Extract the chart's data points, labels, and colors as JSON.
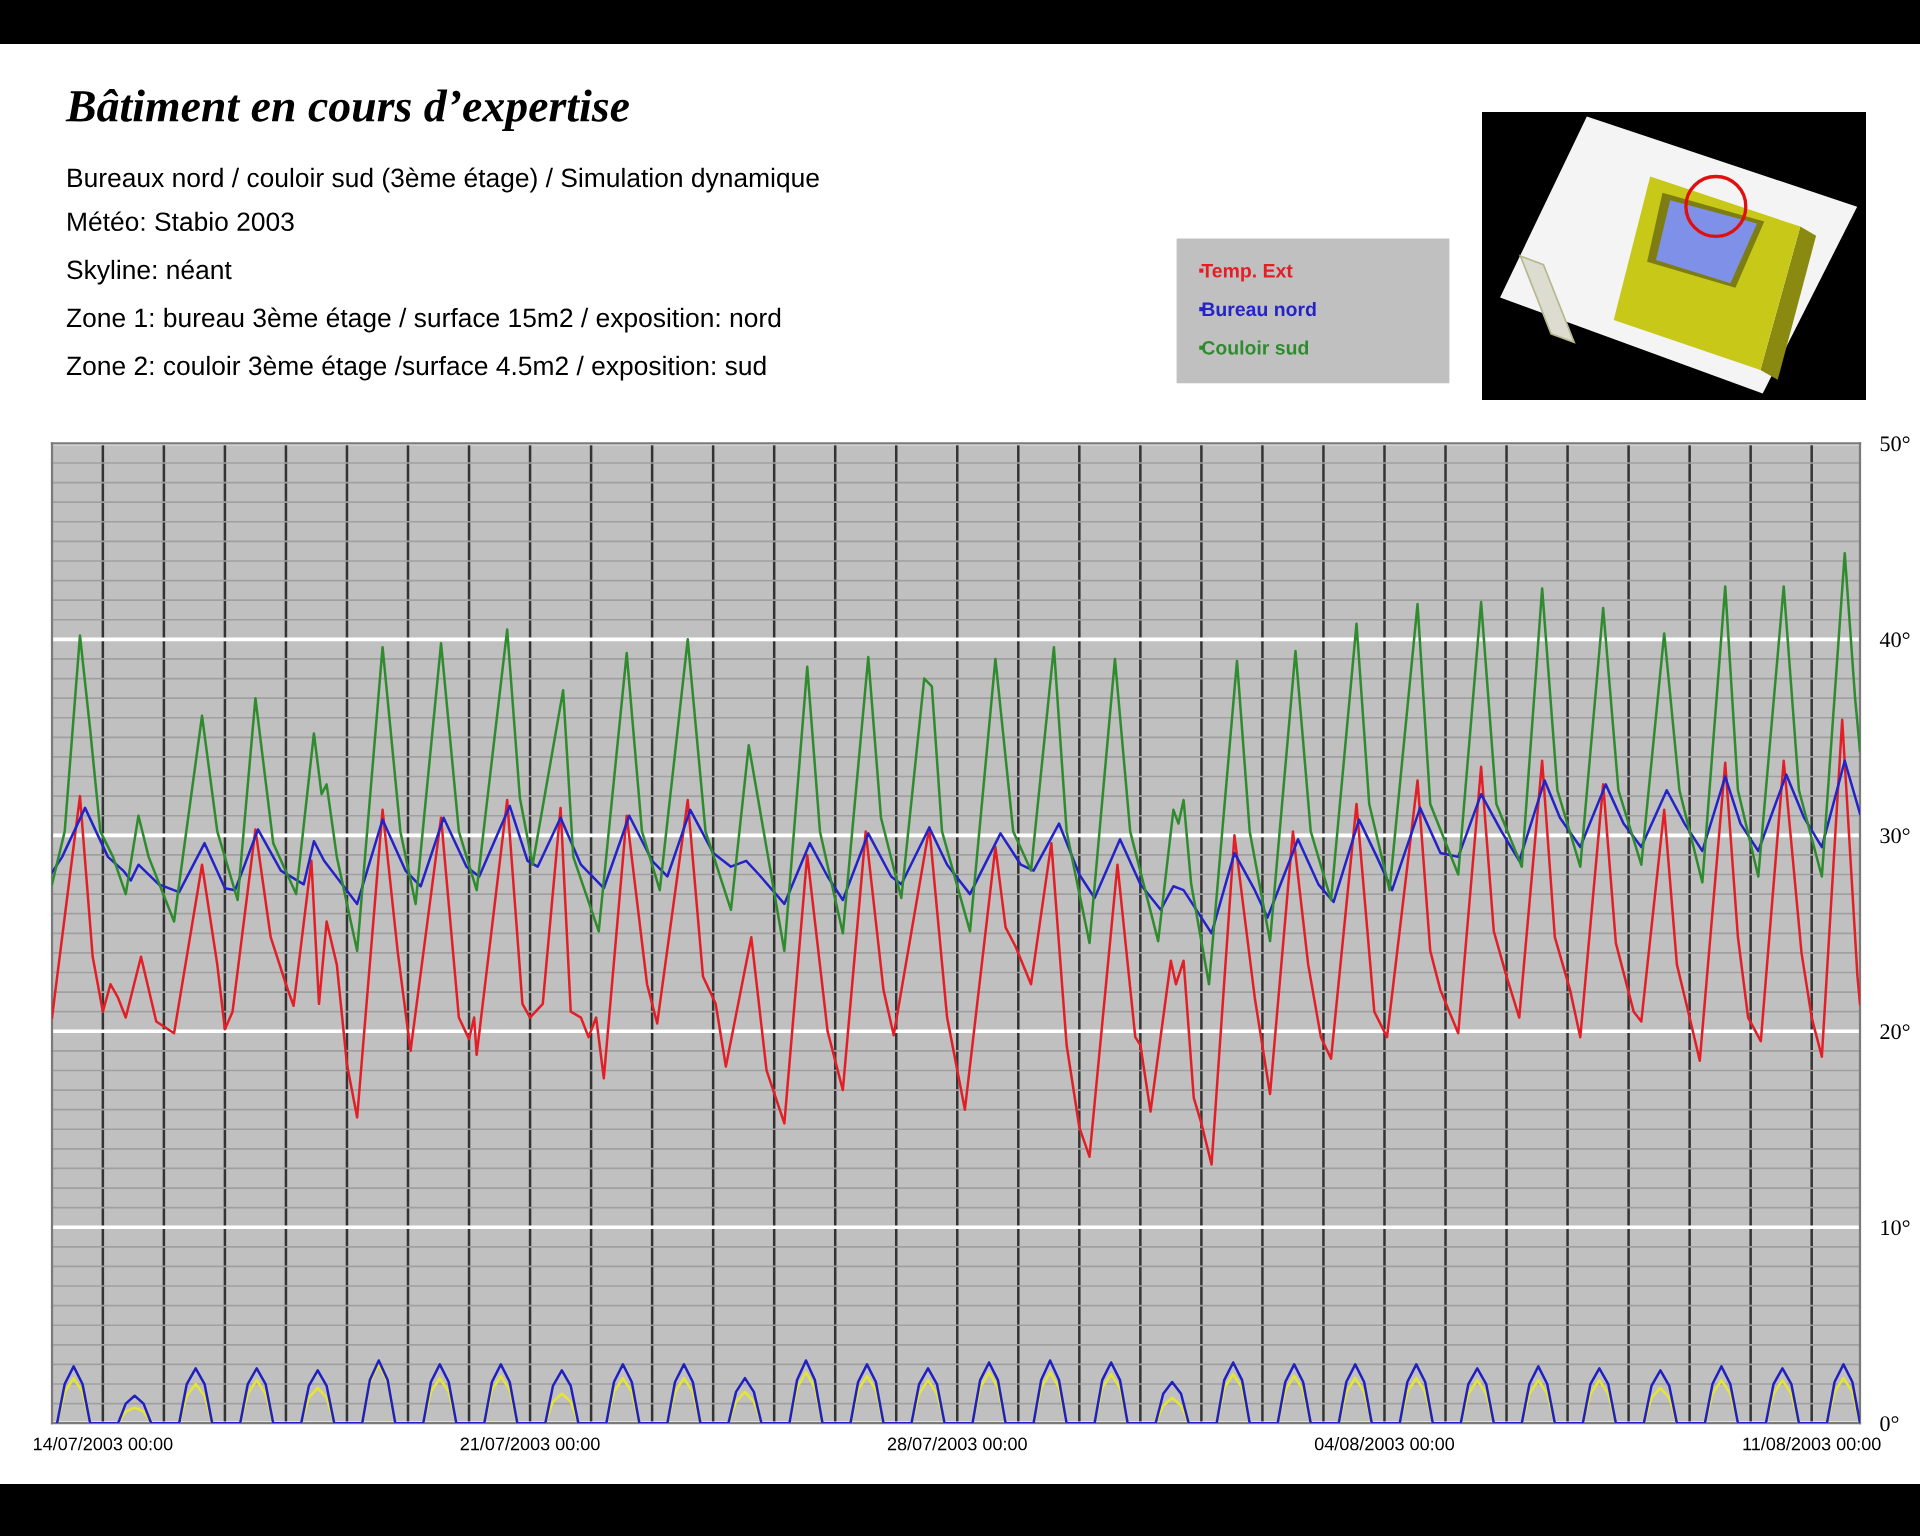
{
  "chart_data": {
    "type": "line",
    "title": "Bâtiment en cours d’expertise",
    "subtitle": "Bureaux nord / couloir sud (3ème étage) / Simulation dynamique",
    "annotations": [
      "Météo: Stabio 2003",
      "Skyline: néant",
      "Zone 1: bureau 3ème étage / surface 15m2 / exposition: nord",
      "Zone 2: couloir 3ème étage /surface 4.5m2 / exposition: sud"
    ],
    "xlim": [
      "2003-07-13T04:00",
      "2003-08-11T19:00"
    ],
    "xticks": [
      {
        "value": "2003-07-14",
        "label": "14/07/2003 00:00"
      },
      {
        "value": "2003-07-15",
        "label": null
      },
      {
        "value": "2003-07-16",
        "label": null
      },
      {
        "value": "2003-07-17",
        "label": null
      },
      {
        "value": "2003-07-18",
        "label": null
      },
      {
        "value": "2003-07-19",
        "label": null
      },
      {
        "value": "2003-07-20",
        "label": null
      },
      {
        "value": "2003-07-21",
        "label": "21/07/2003 00:00"
      },
      {
        "value": "2003-07-22",
        "label": null
      },
      {
        "value": "2003-07-23",
        "label": null
      },
      {
        "value": "2003-07-24",
        "label": null
      },
      {
        "value": "2003-07-25",
        "label": null
      },
      {
        "value": "2003-07-26",
        "label": null
      },
      {
        "value": "2003-07-27",
        "label": null
      },
      {
        "value": "2003-07-28",
        "label": "28/07/2003 00:00"
      },
      {
        "value": "2003-07-29",
        "label": null
      },
      {
        "value": "2003-07-30",
        "label": null
      },
      {
        "value": "2003-07-31",
        "label": null
      },
      {
        "value": "2003-08-01",
        "label": null
      },
      {
        "value": "2003-08-02",
        "label": null
      },
      {
        "value": "2003-08-03",
        "label": null
      },
      {
        "value": "2003-08-04",
        "label": "04/08/2003 00:00"
      },
      {
        "value": "2003-08-05",
        "label": null
      },
      {
        "value": "2003-08-06",
        "label": null
      },
      {
        "value": "2003-08-07",
        "label": null
      },
      {
        "value": "2003-08-08",
        "label": null
      },
      {
        "value": "2003-08-09",
        "label": null
      },
      {
        "value": "2003-08-10",
        "label": null
      },
      {
        "value": "2003-08-11",
        "label": "11/08/2003 00:00"
      }
    ],
    "ylim": [
      0,
      50
    ],
    "yticks": [
      {
        "value": 0,
        "label": "0°"
      },
      {
        "value": 1,
        "label": null
      },
      {
        "value": 2,
        "label": null
      },
      {
        "value": 3,
        "label": null
      },
      {
        "value": 4,
        "label": null
      },
      {
        "value": 5,
        "label": null
      },
      {
        "value": 6,
        "label": null
      },
      {
        "value": 7,
        "label": null
      },
      {
        "value": 8,
        "label": null
      },
      {
        "value": 9,
        "label": null
      },
      {
        "value": 10,
        "label": "10°"
      },
      {
        "value": 11,
        "label": null
      },
      {
        "value": 12,
        "label": null
      },
      {
        "value": 13,
        "label": null
      },
      {
        "value": 14,
        "label": null
      },
      {
        "value": 15,
        "label": null
      },
      {
        "value": 16,
        "label": null
      },
      {
        "value": 17,
        "label": null
      },
      {
        "value": 18,
        "label": null
      },
      {
        "value": 19,
        "label": null
      },
      {
        "value": 20,
        "label": "20°"
      },
      {
        "value": 21,
        "label": null
      },
      {
        "value": 22,
        "label": null
      },
      {
        "value": 23,
        "label": null
      },
      {
        "value": 24,
        "label": null
      },
      {
        "value": 25,
        "label": null
      },
      {
        "value": 26,
        "label": null
      },
      {
        "value": 27,
        "label": null
      },
      {
        "value": 28,
        "label": null
      },
      {
        "value": 29,
        "label": null
      },
      {
        "value": 30,
        "label": "30°"
      },
      {
        "value": 31,
        "label": null
      },
      {
        "value": 32,
        "label": null
      },
      {
        "value": 33,
        "label": null
      },
      {
        "value": 34,
        "label": null
      },
      {
        "value": 35,
        "label": null
      },
      {
        "value": 36,
        "label": null
      },
      {
        "value": 37,
        "label": null
      },
      {
        "value": 38,
        "label": null
      },
      {
        "value": 39,
        "label": null
      },
      {
        "value": 40,
        "label": "40°"
      },
      {
        "value": 41,
        "label": null
      },
      {
        "value": 42,
        "label": null
      },
      {
        "value": 43,
        "label": null
      },
      {
        "value": 44,
        "label": null
      },
      {
        "value": 45,
        "label": null
      },
      {
        "value": 46,
        "label": null
      },
      {
        "value": 47,
        "label": null
      },
      {
        "value": 48,
        "label": null
      },
      {
        "value": 49,
        "label": null
      },
      {
        "value": 50,
        "label": "50°"
      }
    ],
    "grid": true,
    "legend": "top right",
    "x": [
      "2003-07-13T06:00",
      "2003-07-13T09:00",
      "2003-07-13T12:30",
      "2003-07-13T16:00",
      "2003-07-13T19:00",
      "2003-07-14T06:00",
      "2003-07-14T09:00",
      "2003-07-14T12:30",
      "2003-07-14T16:00",
      "2003-07-14T19:00",
      "2003-07-15T06:00",
      "2003-07-15T09:00",
      "2003-07-15T12:30",
      "2003-07-15T16:00",
      "2003-07-15T19:00",
      "2003-07-16T06:00",
      "2003-07-16T09:00",
      "2003-07-16T12:30",
      "2003-07-16T16:00",
      "2003-07-16T19:00",
      "2003-07-17T06:00",
      "2003-07-17T09:00",
      "2003-07-17T12:30",
      "2003-07-17T16:00",
      "2003-07-17T19:00",
      "2003-07-18T06:00",
      "2003-07-18T09:00",
      "2003-07-18T12:30",
      "2003-07-18T16:00",
      "2003-07-18T19:00",
      "2003-07-19T06:00",
      "2003-07-19T09:00",
      "2003-07-19T12:30",
      "2003-07-19T16:00",
      "2003-07-19T19:00",
      "2003-07-20T06:00",
      "2003-07-20T09:00",
      "2003-07-20T12:30",
      "2003-07-20T16:00",
      "2003-07-20T19:00",
      "2003-07-21T06:00",
      "2003-07-21T09:00",
      "2003-07-21T12:30",
      "2003-07-21T16:00",
      "2003-07-21T19:00",
      "2003-07-22T06:00",
      "2003-07-22T09:00",
      "2003-07-22T12:30",
      "2003-07-22T16:00",
      "2003-07-22T19:00",
      "2003-07-23T06:00",
      "2003-07-23T09:00",
      "2003-07-23T12:30",
      "2003-07-23T16:00",
      "2003-07-23T19:00",
      "2003-07-24T06:00",
      "2003-07-24T09:00",
      "2003-07-24T12:30",
      "2003-07-24T16:00",
      "2003-07-24T19:00",
      "2003-07-25T06:00",
      "2003-07-25T09:00",
      "2003-07-25T12:30",
      "2003-07-25T16:00",
      "2003-07-25T19:00",
      "2003-07-26T06:00",
      "2003-07-26T09:00",
      "2003-07-26T12:30",
      "2003-07-26T16:00",
      "2003-07-26T19:00",
      "2003-07-27T06:00",
      "2003-07-27T09:00",
      "2003-07-27T12:30",
      "2003-07-27T16:00",
      "2003-07-27T19:00",
      "2003-07-28T06:00",
      "2003-07-28T09:00",
      "2003-07-28T12:30",
      "2003-07-28T16:00",
      "2003-07-28T19:00",
      "2003-07-29T06:00",
      "2003-07-29T09:00",
      "2003-07-29T12:30",
      "2003-07-29T16:00",
      "2003-07-29T19:00",
      "2003-07-30T06:00",
      "2003-07-30T09:00",
      "2003-07-30T12:30",
      "2003-07-30T16:00",
      "2003-07-30T19:00",
      "2003-07-31T06:00",
      "2003-07-31T09:00",
      "2003-07-31T12:30",
      "2003-07-31T16:00",
      "2003-07-31T19:00",
      "2003-08-01T06:00",
      "2003-08-01T09:00",
      "2003-08-01T12:30",
      "2003-08-01T16:00",
      "2003-08-01T19:00",
      "2003-08-02T06:00",
      "2003-08-02T09:00",
      "2003-08-02T12:30",
      "2003-08-02T16:00",
      "2003-08-02T19:00",
      "2003-08-03T06:00",
      "2003-08-03T09:00",
      "2003-08-03T12:30",
      "2003-08-03T16:00",
      "2003-08-03T19:00",
      "2003-08-04T06:00",
      "2003-08-04T09:00",
      "2003-08-04T12:30",
      "2003-08-04T16:00",
      "2003-08-04T19:00",
      "2003-08-05T06:00",
      "2003-08-05T09:00",
      "2003-08-05T12:30",
      "2003-08-05T16:00",
      "2003-08-05T19:00",
      "2003-08-06T06:00",
      "2003-08-06T09:00",
      "2003-08-06T12:30",
      "2003-08-06T16:00",
      "2003-08-06T19:00",
      "2003-08-07T06:00",
      "2003-08-07T09:00",
      "2003-08-07T12:30",
      "2003-08-07T16:00",
      "2003-08-07T19:00",
      "2003-08-08T06:00",
      "2003-08-08T09:00",
      "2003-08-08T12:30",
      "2003-08-08T16:00",
      "2003-08-08T19:00",
      "2003-08-09T06:00",
      "2003-08-09T09:00",
      "2003-08-09T12:30",
      "2003-08-09T16:00",
      "2003-08-09T19:00",
      "2003-08-10T06:00",
      "2003-08-10T09:00",
      "2003-08-10T12:30",
      "2003-08-10T16:00",
      "2003-08-10T19:00",
      "2003-08-11T06:00",
      "2003-08-11T09:00",
      "2003-08-11T12:30",
      "2003-08-11T16:00",
      "2003-08-11T19:00"
    ],
    "series": [
      {
        "name": "Temp. Ext",
        "color": "#e31e26",
        "x": [
          "2003-07-13T04:00",
          "2003-07-13T15:00",
          "2003-07-13T20:00",
          "2003-07-14T00:00",
          "2003-07-14T03:00",
          "2003-07-14T06:00",
          "2003-07-14T09:00",
          "2003-07-14T15:00",
          "2003-07-14T21:00",
          "2003-07-15T04:00",
          "2003-07-15T15:00",
          "2003-07-15T21:00",
          "2003-07-16T00:00",
          "2003-07-16T03:00",
          "2003-07-16T12:00",
          "2003-07-16T18:00",
          "2003-07-17T00:00",
          "2003-07-17T03:00",
          "2003-07-17T10:00",
          "2003-07-17T13:00",
          "2003-07-17T16:00",
          "2003-07-17T20:00",
          "2003-07-18T00:00",
          "2003-07-18T04:00",
          "2003-07-18T14:00",
          "2003-07-18T20:00",
          "2003-07-19T01:00",
          "2003-07-19T13:00",
          "2003-07-19T20:00",
          "2003-07-20T00:00",
          "2003-07-20T02:00",
          "2003-07-20T03:00",
          "2003-07-20T15:00",
          "2003-07-20T21:00",
          "2003-07-21T00:00",
          "2003-07-21T05:00",
          "2003-07-21T12:00",
          "2003-07-21T16:00",
          "2003-07-21T20:00",
          "2003-07-21T23:00",
          "2003-07-22T02:00",
          "2003-07-22T05:00",
          "2003-07-22T14:00",
          "2003-07-22T22:00",
          "2003-07-23T02:00",
          "2003-07-23T14:00",
          "2003-07-23T20:00",
          "2003-07-24T01:00",
          "2003-07-24T05:00",
          "2003-07-24T15:00",
          "2003-07-24T21:00",
          "2003-07-25T04:00",
          "2003-07-25T13:00",
          "2003-07-25T21:00",
          "2003-07-26T03:00",
          "2003-07-26T12:00",
          "2003-07-26T19:00",
          "2003-07-26T23:00",
          "2003-07-27T13:00",
          "2003-07-27T20:00",
          "2003-07-28T03:00",
          "2003-07-28T15:00",
          "2003-07-28T19:00",
          "2003-07-28T23:00",
          "2003-07-29T05:00",
          "2003-07-29T13:00",
          "2003-07-29T19:00",
          "2003-07-30T00:00",
          "2003-07-30T04:00",
          "2003-07-30T15:00",
          "2003-07-30T22:00",
          "2003-07-31T00:00",
          "2003-07-31T04:00",
          "2003-07-31T12:00",
          "2003-07-31T14:00",
          "2003-07-31T17:00",
          "2003-07-31T21:00",
          "2003-08-01T00:00",
          "2003-08-01T04:00",
          "2003-08-01T13:00",
          "2003-08-01T21:00",
          "2003-08-02T03:00",
          "2003-08-02T12:00",
          "2003-08-02T18:00",
          "2003-08-02T23:00",
          "2003-08-03T03:00",
          "2003-08-03T13:00",
          "2003-08-03T20:00",
          "2003-08-04T01:00",
          "2003-08-04T13:00",
          "2003-08-04T18:00",
          "2003-08-04T22:00",
          "2003-08-05T05:00",
          "2003-08-05T14:00",
          "2003-08-05T19:00",
          "2003-08-06T00:00",
          "2003-08-06T05:00",
          "2003-08-06T14:00",
          "2003-08-06T19:00",
          "2003-08-07T01:00",
          "2003-08-07T05:00",
          "2003-08-07T14:00",
          "2003-08-07T19:00",
          "2003-08-08T02:00",
          "2003-08-08T05:00",
          "2003-08-08T14:00",
          "2003-08-08T19:00",
          "2003-08-09T00:00",
          "2003-08-09T04:00",
          "2003-08-09T14:00",
          "2003-08-09T19:00",
          "2003-08-09T23:00",
          "2003-08-10T04:00",
          "2003-08-10T13:00",
          "2003-08-10T20:00",
          "2003-08-11T00:00",
          "2003-08-11T04:00",
          "2003-08-11T12:00",
          "2003-08-11T18:00",
          "2003-08-11T19:00"
        ],
        "values": [
          20.7,
          32.0,
          23.8,
          21.0,
          22.4,
          21.7,
          20.7,
          23.8,
          20.5,
          19.9,
          28.5,
          23.4,
          20.1,
          21.0,
          30.3,
          24.8,
          22.4,
          21.3,
          28.7,
          21.4,
          25.6,
          23.4,
          18.3,
          15.6,
          31.3,
          24.0,
          19.0,
          30.9,
          20.7,
          19.6,
          20.7,
          18.8,
          31.8,
          21.4,
          20.7,
          21.4,
          31.4,
          21.0,
          20.7,
          19.7,
          20.7,
          17.6,
          31.0,
          22.4,
          20.4,
          31.8,
          22.8,
          21.4,
          18.2,
          24.8,
          18.0,
          15.3,
          29.0,
          20.0,
          17.0,
          30.2,
          22.1,
          19.8,
          30.4,
          20.7,
          16.0,
          29.4,
          25.3,
          24.3,
          22.4,
          29.6,
          19.3,
          15.1,
          13.6,
          28.5,
          19.7,
          19.3,
          15.9,
          23.6,
          22.4,
          23.6,
          16.6,
          15.3,
          13.2,
          30.0,
          21.7,
          16.8,
          30.2,
          23.4,
          19.7,
          18.6,
          31.6,
          21.0,
          19.7,
          32.8,
          24.1,
          22.1,
          19.9,
          33.5,
          25.1,
          22.8,
          20.7,
          33.8,
          24.8,
          22.1,
          19.7,
          32.6,
          24.5,
          21.0,
          20.5,
          31.3,
          23.4,
          20.7,
          18.5,
          33.7,
          24.8,
          20.7,
          19.5,
          33.8,
          24.0,
          20.7,
          18.7,
          35.9,
          22.8,
          21.4
        ]
      },
      {
        "name": "Bureau nord",
        "color": "#2323c8",
        "x": [
          "2003-07-13T04:00",
          "2003-07-13T08:00",
          "2003-07-13T17:00",
          "2003-07-14T02:00",
          "2003-07-14T08:00",
          "2003-07-14T11:00",
          "2003-07-14T14:00",
          "2003-07-14T22:00",
          "2003-07-15T06:00",
          "2003-07-15T16:00",
          "2003-07-16T00:00",
          "2003-07-16T04:00",
          "2003-07-16T13:00",
          "2003-07-16T22:00",
          "2003-07-17T07:00",
          "2003-07-17T11:00",
          "2003-07-17T15:00",
          "2003-07-18T04:00",
          "2003-07-18T14:00",
          "2003-07-18T23:00",
          "2003-07-19T05:00",
          "2003-07-19T14:00",
          "2003-07-19T23:00",
          "2003-07-20T04:00",
          "2003-07-20T16:00",
          "2003-07-20T23:00",
          "2003-07-21T03:00",
          "2003-07-21T12:00",
          "2003-07-21T20:00",
          "2003-07-22T05:00",
          "2003-07-22T15:00",
          "2003-07-23T00:00",
          "2003-07-23T06:00",
          "2003-07-23T15:00",
          "2003-07-24T00:00",
          "2003-07-24T07:00",
          "2003-07-24T13:00",
          "2003-07-24T18:00",
          "2003-07-25T04:00",
          "2003-07-25T14:00",
          "2003-07-25T21:00",
          "2003-07-26T03:00",
          "2003-07-26T13:00",
          "2003-07-26T22:00",
          "2003-07-27T02:00",
          "2003-07-27T13:00",
          "2003-07-27T20:00",
          "2003-07-28T05:00",
          "2003-07-28T17:00",
          "2003-07-29T01:00",
          "2003-07-29T06:00",
          "2003-07-29T16:00",
          "2003-07-30T00:00",
          "2003-07-30T06:00",
          "2003-07-30T16:00",
          "2003-07-31T00:00",
          "2003-07-31T08:00",
          "2003-07-31T13:00",
          "2003-07-31T17:00",
          "2003-08-01T00:00",
          "2003-08-01T04:00",
          "2003-08-01T13:00",
          "2003-08-01T21:00",
          "2003-08-02T02:00",
          "2003-08-02T14:00",
          "2003-08-02T22:00",
          "2003-08-03T04:00",
          "2003-08-03T14:00",
          "2003-08-03T21:00",
          "2003-08-04T03:00",
          "2003-08-04T14:00",
          "2003-08-04T22:00",
          "2003-08-05T05:00",
          "2003-08-05T14:00",
          "2003-08-05T22:00",
          "2003-08-06T05:00",
          "2003-08-06T15:00",
          "2003-08-06T21:00",
          "2003-08-07T05:00",
          "2003-08-07T15:00",
          "2003-08-07T22:00",
          "2003-08-08T05:00",
          "2003-08-08T15:00",
          "2003-08-08T22:00",
          "2003-08-09T05:00",
          "2003-08-09T14:00",
          "2003-08-09T20:00",
          "2003-08-10T03:00",
          "2003-08-10T14:00",
          "2003-08-10T21:00",
          "2003-08-11T04:00",
          "2003-08-11T13:00",
          "2003-08-11T19:00"
        ],
        "values": [
          28.1,
          28.9,
          31.4,
          28.9,
          28.2,
          27.7,
          28.5,
          27.5,
          27.1,
          29.6,
          27.3,
          27.2,
          30.3,
          28.2,
          27.5,
          29.7,
          28.7,
          26.5,
          30.8,
          28.2,
          27.4,
          30.9,
          28.4,
          27.9,
          31.5,
          28.7,
          28.4,
          30.9,
          28.5,
          27.3,
          31.0,
          28.7,
          27.9,
          31.3,
          29.1,
          28.4,
          28.7,
          28.0,
          26.5,
          29.6,
          27.9,
          26.7,
          30.1,
          27.9,
          27.5,
          30.4,
          28.5,
          27.0,
          30.1,
          28.5,
          28.2,
          30.6,
          28.0,
          26.8,
          29.8,
          27.5,
          26.2,
          27.4,
          27.2,
          25.8,
          25.0,
          29.1,
          27.2,
          25.8,
          29.8,
          27.5,
          26.6,
          30.8,
          28.9,
          27.2,
          31.4,
          29.1,
          28.9,
          32.1,
          30.2,
          28.7,
          32.8,
          30.9,
          29.4,
          32.6,
          30.6,
          29.4,
          32.3,
          30.6,
          29.2,
          33.0,
          30.6,
          29.2,
          33.1,
          30.9,
          29.4,
          33.8,
          31.1
        ]
      },
      {
        "name": "Couloir sud",
        "color": "#2e8b2e",
        "x": [
          "2003-07-13T04:00",
          "2003-07-13T09:00",
          "2003-07-13T15:00",
          "2003-07-13T19:00",
          "2003-07-13T23:00",
          "2003-07-14T04:00",
          "2003-07-14T09:00",
          "2003-07-14T14:00",
          "2003-07-14T18:00",
          "2003-07-15T04:00",
          "2003-07-15T15:00",
          "2003-07-15T21:00",
          "2003-07-16T05:00",
          "2003-07-16T12:00",
          "2003-07-16T19:00",
          "2003-07-17T04:00",
          "2003-07-17T11:00",
          "2003-07-17T14:00",
          "2003-07-17T16:00",
          "2003-07-17T20:00",
          "2003-07-18T04:00",
          "2003-07-18T14:00",
          "2003-07-18T21:00",
          "2003-07-19T03:00",
          "2003-07-19T13:00",
          "2003-07-19T20:00",
          "2003-07-20T03:00",
          "2003-07-20T15:00",
          "2003-07-20T20:00",
          "2003-07-21T01:00",
          "2003-07-21T13:00",
          "2003-07-21T17:00",
          "2003-07-22T03:00",
          "2003-07-22T14:00",
          "2003-07-22T20:00",
          "2003-07-23T03:00",
          "2003-07-23T14:00",
          "2003-07-23T21:00",
          "2003-07-24T07:00",
          "2003-07-24T14:00",
          "2003-07-24T18:00",
          "2003-07-25T04:00",
          "2003-07-25T13:00",
          "2003-07-25T18:00",
          "2003-07-26T03:00",
          "2003-07-26T13:00",
          "2003-07-26T18:00",
          "2003-07-27T02:00",
          "2003-07-27T11:00",
          "2003-07-27T14:00",
          "2003-07-27T18:00",
          "2003-07-28T05:00",
          "2003-07-28T15:00",
          "2003-07-28T22:00",
          "2003-07-29T05:00",
          "2003-07-29T14:00",
          "2003-07-29T19:00",
          "2003-07-30T04:00",
          "2003-07-30T14:00",
          "2003-07-30T20:00",
          "2003-07-31T07:00",
          "2003-07-31T13:00",
          "2003-07-31T15:00",
          "2003-07-31T17:00",
          "2003-07-31T20:00",
          "2003-08-01T03:00",
          "2003-08-01T14:00",
          "2003-08-01T19:00",
          "2003-08-02T03:00",
          "2003-08-02T13:00",
          "2003-08-02T19:00",
          "2003-08-03T03:00",
          "2003-08-03T13:00",
          "2003-08-03T18:00",
          "2003-08-04T02:00",
          "2003-08-04T13:00",
          "2003-08-04T18:00",
          "2003-08-05T05:00",
          "2003-08-05T14:00",
          "2003-08-05T20:00",
          "2003-08-06T06:00",
          "2003-08-06T14:00",
          "2003-08-06T20:00",
          "2003-08-07T05:00",
          "2003-08-07T14:00",
          "2003-08-07T20:00",
          "2003-08-08T05:00",
          "2003-08-08T14:00",
          "2003-08-08T20:00",
          "2003-08-09T05:00",
          "2003-08-09T14:00",
          "2003-08-09T19:00",
          "2003-08-10T03:00",
          "2003-08-10T13:00",
          "2003-08-10T19:00",
          "2003-08-11T04:00",
          "2003-08-11T13:00",
          "2003-08-11T17:00",
          "2003-08-11T19:00"
        ],
        "values": [
          27.5,
          30.2,
          40.2,
          35.4,
          30.2,
          28.9,
          27.0,
          31.0,
          28.9,
          25.6,
          36.1,
          30.2,
          26.7,
          37.0,
          29.6,
          27.0,
          35.2,
          32.1,
          32.6,
          28.9,
          24.1,
          39.6,
          30.2,
          26.5,
          39.8,
          30.2,
          27.2,
          40.5,
          31.9,
          28.5,
          37.4,
          28.9,
          25.1,
          39.3,
          30.2,
          27.2,
          40.0,
          30.2,
          26.2,
          34.6,
          31.6,
          24.1,
          38.6,
          30.2,
          25.0,
          39.1,
          30.9,
          26.8,
          38.0,
          37.6,
          30.2,
          25.1,
          39.0,
          30.2,
          28.2,
          39.6,
          30.2,
          24.5,
          39.0,
          30.2,
          24.6,
          31.3,
          30.6,
          31.8,
          27.5,
          22.4,
          38.9,
          30.2,
          24.6,
          39.4,
          30.2,
          26.7,
          40.8,
          31.6,
          27.2,
          41.8,
          31.6,
          28.0,
          41.9,
          31.6,
          28.4,
          42.6,
          32.3,
          28.4,
          41.6,
          32.3,
          28.5,
          40.3,
          32.3,
          27.6,
          42.7,
          32.3,
          27.9,
          42.7,
          32.3,
          27.9,
          44.4,
          37.1,
          34.3
        ]
      },
      {
        "color": "#e6e632",
        "values": [
          0,
          1.6,
          2.3,
          1.6,
          0,
          0,
          0.6,
          0.8,
          0.6,
          0,
          0,
          1.4,
          2.0,
          1.4,
          0,
          0,
          1.5,
          2.2,
          1.5,
          0,
          0,
          1.3,
          1.8,
          1.3,
          0,
          0,
          2.1,
          3.0,
          2.1,
          0,
          0,
          1.6,
          2.3,
          1.6,
          0,
          0,
          1.7,
          2.4,
          1.7,
          0,
          0,
          1.1,
          1.5,
          1.1,
          0,
          0,
          1.6,
          2.3,
          1.6,
          0,
          0,
          1.6,
          2.3,
          1.6,
          0,
          0,
          1.1,
          1.6,
          1.1,
          0,
          0,
          1.8,
          2.6,
          1.8,
          0,
          0,
          1.7,
          2.4,
          1.7,
          0,
          0,
          1.5,
          2.2,
          1.5,
          0,
          0,
          1.8,
          2.6,
          1.8,
          0,
          0,
          1.8,
          2.6,
          1.8,
          0,
          0,
          1.8,
          2.5,
          1.8,
          0,
          0,
          0.9,
          1.3,
          0.9,
          0,
          0,
          1.8,
          2.5,
          1.8,
          0,
          0,
          1.7,
          2.4,
          1.7,
          0,
          0,
          1.6,
          2.3,
          1.6,
          0,
          0,
          1.6,
          2.3,
          1.6,
          0,
          0,
          1.5,
          2.2,
          1.5,
          0,
          0,
          1.5,
          2.2,
          1.5,
          0,
          0,
          1.5,
          2.2,
          1.5,
          0,
          0,
          1.3,
          1.8,
          1.3,
          0,
          0,
          1.5,
          2.2,
          1.5,
          0,
          0,
          1.5,
          2.2,
          1.5,
          0,
          0,
          1.6,
          2.3,
          1.6,
          0
        ]
      },
      {
        "color": "#2020c0",
        "values": [
          0,
          2.0,
          2.9,
          2.0,
          0,
          0,
          1.0,
          1.4,
          1.0,
          0,
          0,
          2.0,
          2.8,
          2.0,
          0,
          0,
          2.0,
          2.8,
          2.0,
          0,
          0,
          1.9,
          2.7,
          1.9,
          0,
          0,
          2.2,
          3.2,
          2.2,
          0,
          0,
          2.1,
          3.0,
          2.1,
          0,
          0,
          2.1,
          3.0,
          2.1,
          0,
          0,
          1.9,
          2.7,
          1.9,
          0,
          0,
          2.1,
          3.0,
          2.1,
          0,
          0,
          2.1,
          3.0,
          2.1,
          0,
          0,
          1.6,
          2.3,
          1.6,
          0,
          0,
          2.2,
          3.2,
          2.2,
          0,
          0,
          2.1,
          3.0,
          2.1,
          0,
          0,
          2.0,
          2.8,
          2.0,
          0,
          0,
          2.2,
          3.1,
          2.2,
          0,
          0,
          2.2,
          3.2,
          2.2,
          0,
          0,
          2.2,
          3.1,
          2.2,
          0,
          0,
          1.5,
          2.1,
          1.5,
          0,
          0,
          2.2,
          3.1,
          2.2,
          0,
          0,
          2.1,
          3.0,
          2.1,
          0,
          0,
          2.1,
          3.0,
          2.1,
          0,
          0,
          2.1,
          3.0,
          2.1,
          0,
          0,
          2.0,
          2.8,
          2.0,
          0,
          0,
          2.0,
          2.9,
          2.0,
          0,
          0,
          2.0,
          2.8,
          2.0,
          0,
          0,
          1.9,
          2.7,
          1.9,
          0,
          0,
          2.0,
          2.9,
          2.0,
          0,
          0,
          2.0,
          2.8,
          2.0,
          0,
          0,
          2.1,
          3.0,
          2.1,
          0
        ]
      }
    ]
  }
}
